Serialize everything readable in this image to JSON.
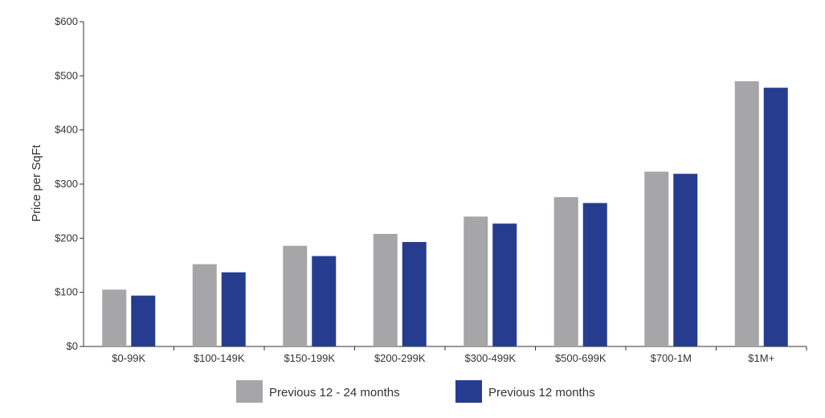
{
  "chart_data": {
    "type": "bar",
    "title": "",
    "xlabel": "",
    "ylabel": "Price per SqFt",
    "categories": [
      "$0-99K",
      "$100-149K",
      "$150-199K",
      "$200-299K",
      "$300-499K",
      "$500-699K",
      "$700-1M",
      "$1M+"
    ],
    "series": [
      {
        "name": "Previous 12 - 24 months",
        "color": "#a6a6a8",
        "values": [
          105,
          152,
          186,
          208,
          240,
          276,
          323,
          490
        ]
      },
      {
        "name": "Previous 12 months",
        "color": "#263d8f",
        "values": [
          94,
          137,
          167,
          193,
          227,
          265,
          319,
          478
        ]
      }
    ],
    "ylim": [
      0,
      600
    ],
    "yticks": [
      0,
      100,
      200,
      300,
      400,
      500,
      600
    ],
    "ytick_labels": [
      "$0",
      "$100",
      "$200",
      "$300",
      "$400",
      "$500",
      "$600"
    ],
    "grid": false,
    "legend_position": "bottom-center"
  }
}
